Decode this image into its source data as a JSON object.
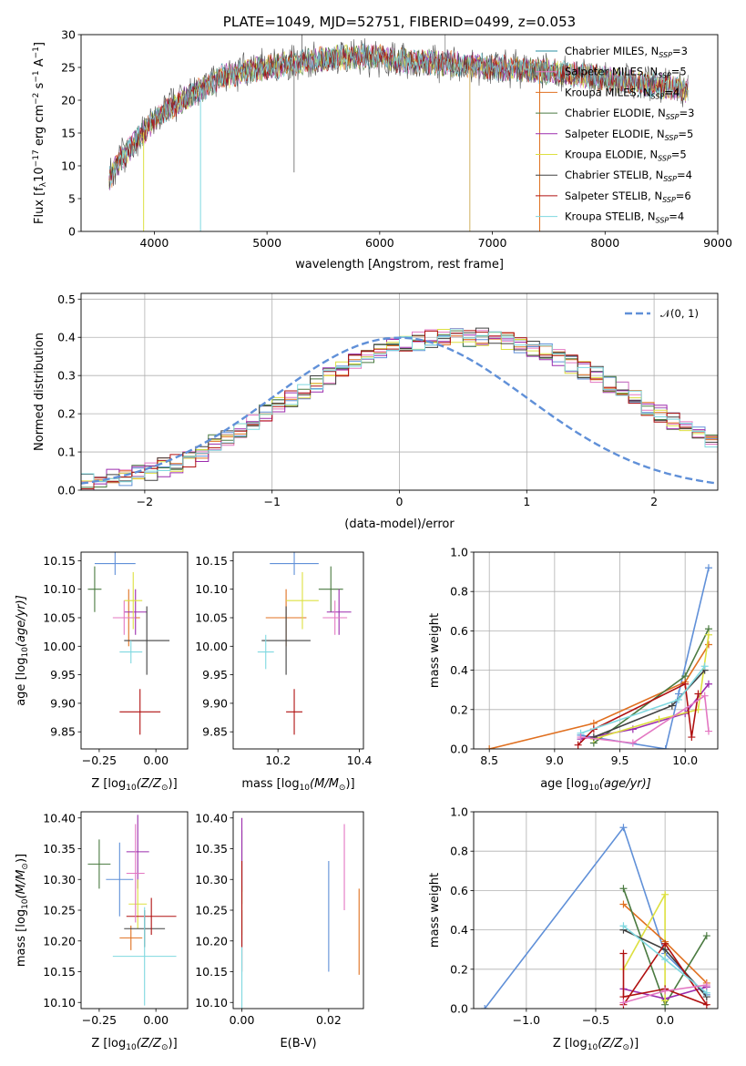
{
  "chart_data": [
    {
      "id": "spectrum",
      "type": "line",
      "title": "PLATE=1049, MJD=52751, FIBERID=0499, z=0.053",
      "xlabel": "wavelength [Angstrom, rest frame]",
      "ylabel": "Flux [f$_\\lambda$10$^{-17}$ erg cm$^{-2}$ s$^{-1}$ A$^{-1}$]",
      "ylabel_parts": {
        "a": "Flux [f",
        "b": "λ",
        "c": "10",
        "d": "−17",
        "e": " erg cm",
        "f": "−2",
        "g": " s",
        "h": "−1",
        "i": " A",
        "j": "−1",
        "k": "]"
      },
      "xlim": [
        3350,
        9000
      ],
      "ylim": [
        0,
        30
      ],
      "xticks": [
        "4000",
        "5000",
        "6000",
        "7000",
        "8000",
        "9000"
      ],
      "xtick_values": [
        4000,
        5000,
        6000,
        7000,
        8000,
        9000
      ],
      "yticks": [
        "0",
        "5",
        "10",
        "15",
        "20",
        "25",
        "30"
      ],
      "ytick_values": [
        0,
        5,
        10,
        15,
        20,
        25,
        30
      ],
      "continuum": [
        [
          3600,
          8
        ],
        [
          3700,
          11
        ],
        [
          3800,
          13
        ],
        [
          3900,
          15
        ],
        [
          4000,
          17
        ],
        [
          4100,
          18.5
        ],
        [
          4200,
          19.5
        ],
        [
          4300,
          20.5
        ],
        [
          4400,
          21.5
        ],
        [
          4500,
          22.5
        ],
        [
          4600,
          23.5
        ],
        [
          4800,
          24.5
        ],
        [
          5000,
          25
        ],
        [
          5200,
          25.5
        ],
        [
          5400,
          26
        ],
        [
          5600,
          26.5
        ],
        [
          5800,
          26.7
        ],
        [
          6000,
          26.5
        ],
        [
          6200,
          26
        ],
        [
          6400,
          25.8
        ],
        [
          6600,
          25.6
        ],
        [
          6800,
          25.3
        ],
        [
          7000,
          25
        ],
        [
          7200,
          24.8
        ],
        [
          7400,
          24.5
        ],
        [
          7600,
          24.2
        ],
        [
          7800,
          23.8
        ],
        [
          8000,
          23.3
        ],
        [
          8200,
          22.8
        ],
        [
          8400,
          22.3
        ],
        [
          8600,
          22
        ],
        [
          8740,
          21.5
        ]
      ],
      "legend": [
        {
          "label": "Chabrier MILES, N",
          "sub": "SSP",
          "suffix": "=3",
          "color": "#2a8ca0"
        },
        {
          "label": "Salpeter MILES, N",
          "sub": "SSP",
          "suffix": "=5",
          "color": "#e377c2"
        },
        {
          "label": "Kroupa MILES, N",
          "sub": "SSP",
          "suffix": "=4",
          "color": "#e07020"
        },
        {
          "label": "Chabrier ELODIE, N",
          "sub": "SSP",
          "suffix": "=3",
          "color": "#4a7a40"
        },
        {
          "label": "Salpeter ELODIE, N",
          "sub": "SSP",
          "suffix": "=5",
          "color": "#9b2bad"
        },
        {
          "label": "Kroupa ELODIE, N",
          "sub": "SSP",
          "suffix": "=5",
          "color": "#dde040"
        },
        {
          "label": "Chabrier STELIB, N",
          "sub": "SSP",
          "suffix": "=4",
          "color": "#404040"
        },
        {
          "label": "Salpeter STELIB, N",
          "sub": "SSP",
          "suffix": "=6",
          "color": "#b01010"
        },
        {
          "label": "Kroupa STELIB, N",
          "sub": "SSP",
          "suffix": "=4",
          "color": "#7fd8e0"
        }
      ]
    },
    {
      "id": "residuals",
      "type": "line",
      "xlabel": "(data-model)/error",
      "ylabel": "Normed distribution",
      "xlim": [
        -2.5,
        2.5
      ],
      "ylim": [
        0,
        0.515
      ],
      "xticks": [
        "−2",
        "−1",
        "0",
        "1",
        "2"
      ],
      "xtick_values": [
        -2,
        -1,
        0,
        1,
        2
      ],
      "yticks": [
        "0.0",
        "0.1",
        "0.2",
        "0.3",
        "0.4",
        "0.5"
      ],
      "ytick_values": [
        0,
        0.1,
        0.2,
        0.3,
        0.4,
        0.5
      ],
      "grid": true,
      "legend": [
        {
          "label": "𝒩(0, 1)",
          "color": "#6090d8",
          "dashed": true
        }
      ],
      "bin_edges_start": -2.5,
      "bin_width": 0.1,
      "hist_base": [
        0.02,
        0.025,
        0.03,
        0.035,
        0.04,
        0.05,
        0.06,
        0.07,
        0.085,
        0.1,
        0.12,
        0.14,
        0.16,
        0.18,
        0.2,
        0.22,
        0.24,
        0.26,
        0.28,
        0.3,
        0.32,
        0.335,
        0.35,
        0.36,
        0.375,
        0.385,
        0.39,
        0.395,
        0.4,
        0.4,
        0.4,
        0.4,
        0.395,
        0.39,
        0.38,
        0.37,
        0.36,
        0.345,
        0.33,
        0.315,
        0.3,
        0.28,
        0.26,
        0.24,
        0.22,
        0.2,
        0.18,
        0.16,
        0.14,
        0.12,
        0.105,
        0.09,
        0.075,
        0.065,
        0.055,
        0.045,
        0.04,
        0.035,
        0.03,
        0.025,
        0.02
      ]
    },
    {
      "id": "age_vs_Z",
      "type": "scatter",
      "xlabel": "Z [log",
      "xlabel_sub": "10",
      "xlabel_rest": "(Z/Z",
      "xlabel_sun": "⊙",
      "xlabel_end": ")]",
      "ylabel": "age  [log",
      "ylabel_sub": "10",
      "ylabel_rest": "(age/yr)]",
      "xlim": [
        -0.33,
        0.14
      ],
      "ylim": [
        9.82,
        10.165
      ],
      "xticks": [
        "−0.25",
        "0.00"
      ],
      "xtick_values": [
        -0.25,
        0
      ],
      "yticks": [
        "9.85",
        "9.90",
        "9.95",
        "10.00",
        "10.05",
        "10.10",
        "10.15"
      ],
      "ytick_values": [
        9.85,
        9.9,
        9.95,
        10,
        10.05,
        10.1,
        10.15
      ],
      "points": [
        {
          "x": -0.18,
          "y": 10.145,
          "xerr": 0.09,
          "yerr": 0.02,
          "color": "#6090d8"
        },
        {
          "x": -0.12,
          "y": 10.05,
          "xerr": 0.05,
          "yerr": 0.05,
          "color": "#e07020"
        },
        {
          "x": -0.27,
          "y": 10.1,
          "xerr": 0.03,
          "yerr": 0.04,
          "color": "#4a7a40"
        },
        {
          "x": -0.09,
          "y": 10.06,
          "xerr": 0.05,
          "yerr": 0.04,
          "color": "#9b2bad"
        },
        {
          "x": -0.1,
          "y": 10.08,
          "xerr": 0.04,
          "yerr": 0.05,
          "color": "#dde040"
        },
        {
          "x": -0.04,
          "y": 10.01,
          "xerr": 0.1,
          "yerr": 0.06,
          "color": "#404040"
        },
        {
          "x": -0.07,
          "y": 9.885,
          "xerr": 0.09,
          "yerr": 0.04,
          "color": "#b01010"
        },
        {
          "x": -0.11,
          "y": 9.99,
          "xerr": 0.05,
          "yerr": 0.02,
          "color": "#7fd8e0"
        },
        {
          "x": -0.14,
          "y": 10.05,
          "xerr": 0.05,
          "yerr": 0.03,
          "color": "#e377c2"
        }
      ]
    },
    {
      "id": "age_vs_mass",
      "type": "scatter",
      "xlabel": "mass [log",
      "xlabel_sub": "10",
      "xlabel_rest": "(M/M",
      "xlabel_sun": "⊙",
      "xlabel_end": ")]",
      "xlim": [
        10.09,
        10.41
      ],
      "ylim": [
        9.82,
        10.165
      ],
      "xticks": [
        "10.2",
        "10.4"
      ],
      "xtick_values": [
        10.2,
        10.4
      ],
      "yticks": [
        "9.85",
        "9.90",
        "9.95",
        "10.00",
        "10.05",
        "10.10",
        "10.15"
      ],
      "ytick_values": [
        9.85,
        9.9,
        9.95,
        10,
        10.05,
        10.1,
        10.15
      ],
      "points": [
        {
          "x": 10.24,
          "y": 10.145,
          "xerr": 0.06,
          "yerr": 0.02,
          "color": "#6090d8"
        },
        {
          "x": 10.22,
          "y": 10.05,
          "xerr": 0.05,
          "yerr": 0.05,
          "color": "#e07020"
        },
        {
          "x": 10.33,
          "y": 10.1,
          "xerr": 0.03,
          "yerr": 0.04,
          "color": "#4a7a40"
        },
        {
          "x": 10.35,
          "y": 10.06,
          "xerr": 0.03,
          "yerr": 0.04,
          "color": "#9b2bad"
        },
        {
          "x": 10.26,
          "y": 10.08,
          "xerr": 0.04,
          "yerr": 0.05,
          "color": "#dde040"
        },
        {
          "x": 10.22,
          "y": 10.01,
          "xerr": 0.06,
          "yerr": 0.06,
          "color": "#404040"
        },
        {
          "x": 10.24,
          "y": 9.885,
          "xerr": 0.02,
          "yerr": 0.04,
          "color": "#b01010"
        },
        {
          "x": 10.17,
          "y": 9.99,
          "xerr": 0.02,
          "yerr": 0.03,
          "color": "#7fd8e0"
        },
        {
          "x": 10.34,
          "y": 10.05,
          "xerr": 0.03,
          "yerr": 0.03,
          "color": "#e377c2"
        }
      ]
    },
    {
      "id": "weight_vs_age",
      "type": "line",
      "xlabel": "age  [log",
      "xlabel_sub": "10",
      "xlabel_rest": "(age/yr)]",
      "ylabel": "mass weight",
      "xlim": [
        8.38,
        10.25
      ],
      "ylim": [
        0,
        1
      ],
      "xticks": [
        "8.5",
        "9.0",
        "9.5",
        "10.0"
      ],
      "xtick_values": [
        8.5,
        9,
        9.5,
        10
      ],
      "yticks": [
        "0.0",
        "0.2",
        "0.4",
        "0.6",
        "0.8",
        "1.0"
      ],
      "ytick_values": [
        0,
        0.2,
        0.4,
        0.6,
        0.8,
        1
      ],
      "grid": true,
      "series": [
        {
          "color": "#6090d8",
          "x": [
            9.2,
            9.85,
            9.95,
            10.18
          ],
          "y": [
            0.07,
            0.0,
            0.28,
            0.92
          ]
        },
        {
          "color": "#e07020",
          "x": [
            8.5,
            9.3,
            10.0,
            10.18
          ],
          "y": [
            0.0,
            0.13,
            0.34,
            0.53
          ]
        },
        {
          "color": "#4a7a40",
          "x": [
            9.3,
            10.0,
            10.18
          ],
          "y": [
            0.03,
            0.37,
            0.61
          ]
        },
        {
          "color": "#9b2bad",
          "x": [
            9.2,
            9.6,
            10.0,
            10.18
          ],
          "y": [
            0.05,
            0.1,
            0.18,
            0.33
          ]
        },
        {
          "color": "#dde040",
          "x": [
            9.3,
            9.8,
            10.1,
            10.18
          ],
          "y": [
            0.05,
            0.15,
            0.2,
            0.58
          ]
        },
        {
          "color": "#404040",
          "x": [
            9.3,
            9.9,
            10.15
          ],
          "y": [
            0.06,
            0.22,
            0.4
          ]
        },
        {
          "color": "#b01010",
          "x": [
            9.18,
            9.3,
            10.0,
            10.05,
            10.1
          ],
          "y": [
            0.02,
            0.1,
            0.33,
            0.06,
            0.28
          ]
        },
        {
          "color": "#7fd8e0",
          "x": [
            9.2,
            9.95,
            10.15
          ],
          "y": [
            0.08,
            0.25,
            0.42
          ]
        },
        {
          "color": "#e377c2",
          "x": [
            9.2,
            9.6,
            10.15,
            10.18
          ],
          "y": [
            0.06,
            0.03,
            0.27,
            0.09
          ]
        }
      ]
    },
    {
      "id": "mass_vs_Z",
      "type": "scatter",
      "xlabel": "Z [log",
      "xlabel_sub": "10",
      "xlabel_rest": "(Z/Z",
      "xlabel_sun": "⊙",
      "xlabel_end": ")]",
      "ylabel": "mass [log",
      "ylabel_sub": "10",
      "ylabel_rest": "(M/M",
      "ylabel_sun": "⊙",
      "ylabel_end": ")]",
      "xlim": [
        -0.33,
        0.14
      ],
      "ylim": [
        10.09,
        10.41
      ],
      "xticks": [
        "−0.25",
        "0.00"
      ],
      "xtick_values": [
        -0.25,
        0
      ],
      "yticks": [
        "10.10",
        "10.15",
        "10.20",
        "10.25",
        "10.30",
        "10.35",
        "10.40"
      ],
      "ytick_values": [
        10.1,
        10.15,
        10.2,
        10.25,
        10.3,
        10.35,
        10.4
      ],
      "points": [
        {
          "x": -0.16,
          "y": 10.3,
          "xerr": 0.06,
          "yerr": 0.06,
          "color": "#6090d8"
        },
        {
          "x": -0.11,
          "y": 10.205,
          "xerr": 0.05,
          "yerr": 0.02,
          "color": "#e07020"
        },
        {
          "x": -0.25,
          "y": 10.325,
          "xerr": 0.05,
          "yerr": 0.04,
          "color": "#4a7a40"
        },
        {
          "x": -0.08,
          "y": 10.345,
          "xerr": 0.05,
          "yerr": 0.06,
          "color": "#9b2bad"
        },
        {
          "x": -0.08,
          "y": 10.26,
          "xerr": 0.04,
          "yerr": 0.04,
          "color": "#dde040"
        },
        {
          "x": -0.05,
          "y": 10.22,
          "xerr": 0.09,
          "yerr": 0.03,
          "color": "#404040"
        },
        {
          "x": -0.02,
          "y": 10.24,
          "xerr": 0.11,
          "yerr": 0.03,
          "color": "#b01010"
        },
        {
          "x": -0.05,
          "y": 10.175,
          "xerr": 0.14,
          "yerr": 0.08,
          "color": "#7fd8e0"
        },
        {
          "x": -0.09,
          "y": 10.31,
          "xerr": 0.04,
          "yerr": 0.08,
          "color": "#e377c2"
        }
      ]
    },
    {
      "id": "mass_vs_ebv",
      "type": "scatter",
      "xlabel": "E(B-V)",
      "xlim": [
        -0.002,
        0.028
      ],
      "ylim": [
        10.09,
        10.41
      ],
      "xticks": [
        "0.00",
        "0.02"
      ],
      "xtick_values": [
        0,
        0.02
      ],
      "yticks": [
        "10.10",
        "10.15",
        "10.20",
        "10.25",
        "10.30",
        "10.35",
        "10.40"
      ],
      "ytick_values": [
        10.1,
        10.15,
        10.2,
        10.25,
        10.3,
        10.35,
        10.4
      ],
      "points": [
        {
          "x": 0.02,
          "y": 10.24,
          "yerr": 0.09,
          "color": "#6090d8"
        },
        {
          "x": 0.027,
          "y": 10.215,
          "yerr": 0.07,
          "color": "#e07020"
        },
        {
          "x": 0.0,
          "y": 10.32,
          "yerr": 0.06,
          "color": "#4a7a40"
        },
        {
          "x": 0.0,
          "y": 10.34,
          "yerr": 0.06,
          "color": "#9b2bad"
        },
        {
          "x": 0.0,
          "y": 10.25,
          "yerr": 0.04,
          "color": "#dde040"
        },
        {
          "x": 0.0,
          "y": 10.22,
          "yerr": 0.03,
          "color": "#404040"
        },
        {
          "x": 0.0,
          "y": 10.24,
          "yerr": 0.09,
          "color": "#b01010"
        },
        {
          "x": 0.0,
          "y": 10.14,
          "yerr": 0.05,
          "color": "#7fd8e0"
        },
        {
          "x": 0.0236,
          "y": 10.32,
          "yerr": 0.07,
          "color": "#e377c2"
        }
      ]
    },
    {
      "id": "weight_vs_Z",
      "type": "line",
      "xlabel": "Z [log",
      "xlabel_sub": "10",
      "xlabel_rest": "(Z/Z",
      "xlabel_sun": "⊙",
      "xlabel_end": ")]",
      "ylabel": "mass weight",
      "xlim": [
        -1.38,
        0.38
      ],
      "ylim": [
        0,
        1
      ],
      "xticks": [
        "−1.0",
        "−0.5",
        "0.0"
      ],
      "xtick_values": [
        -1,
        -0.5,
        0
      ],
      "yticks": [
        "0.0",
        "0.2",
        "0.4",
        "0.6",
        "0.8",
        "1.0"
      ],
      "ytick_values": [
        0,
        0.2,
        0.4,
        0.6,
        0.8,
        1
      ],
      "grid": true,
      "series": [
        {
          "color": "#6090d8",
          "x": [
            -1.3,
            -0.3,
            0.0,
            0.3
          ],
          "y": [
            0.0,
            0.92,
            0.28,
            0.07
          ]
        },
        {
          "color": "#e07020",
          "x": [
            -0.3,
            0.0,
            0.3
          ],
          "y": [
            0.53,
            0.34,
            0.13
          ]
        },
        {
          "color": "#4a7a40",
          "x": [
            -0.3,
            0.0,
            0.3
          ],
          "y": [
            0.61,
            0.02,
            0.37
          ]
        },
        {
          "color": "#9b2bad",
          "x": [
            -0.3,
            0.0,
            0.3
          ],
          "y": [
            0.1,
            0.05,
            0.11
          ]
        },
        {
          "color": "#dde040",
          "x": [
            -0.3,
            0.0,
            0.0
          ],
          "y": [
            0.2,
            0.58,
            0.04
          ]
        },
        {
          "color": "#404040",
          "x": [
            -0.3,
            0.0,
            0.3
          ],
          "y": [
            0.4,
            0.3,
            0.06
          ]
        },
        {
          "color": "#b01010",
          "x": [
            -0.3,
            -0.3,
            0.0,
            0.3,
            0.0,
            -0.3
          ],
          "y": [
            0.28,
            0.06,
            0.1,
            0.02,
            0.33,
            0.02
          ]
        },
        {
          "color": "#7fd8e0",
          "x": [
            -0.3,
            0.0,
            0.3
          ],
          "y": [
            0.42,
            0.25,
            0.08
          ]
        },
        {
          "color": "#e377c2",
          "x": [
            -0.3,
            0.0,
            0.3
          ],
          "y": [
            0.03,
            0.09,
            0.12
          ]
        }
      ]
    }
  ]
}
